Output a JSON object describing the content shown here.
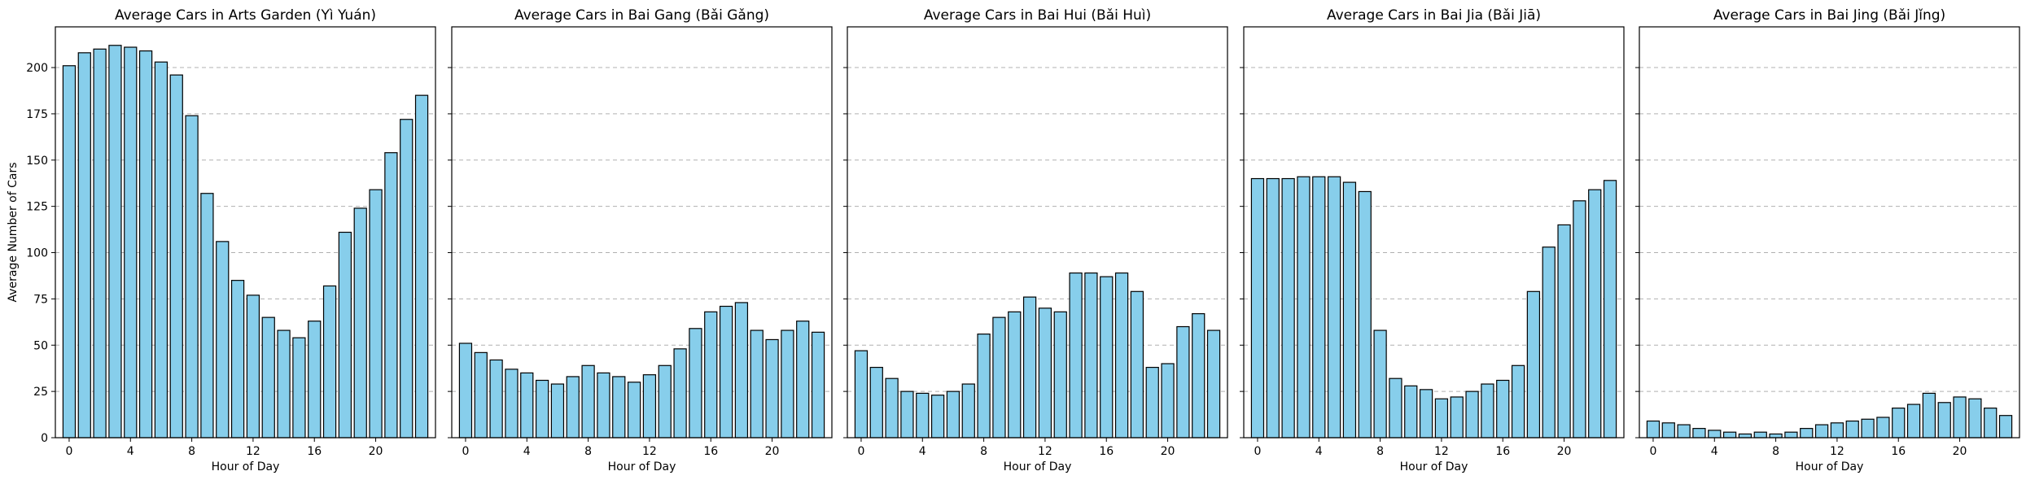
{
  "chart_data": [
    {
      "type": "bar",
      "title": "Average Cars in Arts Garden (Yì Yuán)",
      "xlabel": "Hour of Day",
      "ylabel": "Average Number of Cars",
      "categories": [
        0,
        1,
        2,
        3,
        4,
        5,
        6,
        7,
        8,
        9,
        10,
        11,
        12,
        13,
        14,
        15,
        16,
        17,
        18,
        19,
        20,
        21,
        22,
        23
      ],
      "values": [
        201,
        208,
        210,
        212,
        211,
        209,
        203,
        196,
        174,
        132,
        106,
        85,
        77,
        65,
        58,
        54,
        63,
        82,
        111,
        124,
        134,
        154,
        172,
        185
      ],
      "xticks": [
        0,
        4,
        8,
        12,
        16,
        20
      ],
      "ylim": [
        0,
        222
      ],
      "yticks": [
        0,
        25,
        50,
        75,
        100,
        125,
        150,
        175,
        200
      ],
      "grid": "y"
    },
    {
      "type": "bar",
      "title": "Average Cars in Bai Gang (Bǎi Gǎng)",
      "xlabel": "Hour of Day",
      "ylabel": "",
      "categories": [
        0,
        1,
        2,
        3,
        4,
        5,
        6,
        7,
        8,
        9,
        10,
        11,
        12,
        13,
        14,
        15,
        16,
        17,
        18,
        19,
        20,
        21,
        22,
        23
      ],
      "values": [
        51,
        46,
        42,
        37,
        35,
        31,
        29,
        33,
        39,
        35,
        33,
        30,
        34,
        39,
        48,
        59,
        68,
        71,
        73,
        58,
        53,
        58,
        63,
        57
      ],
      "xticks": [
        0,
        4,
        8,
        12,
        16,
        20
      ],
      "ylim": [
        0,
        222
      ],
      "yticks": [
        0,
        25,
        50,
        75,
        100,
        125,
        150,
        175,
        200
      ],
      "grid": "y"
    },
    {
      "type": "bar",
      "title": "Average Cars in Bai Hui (Bǎi Huì)",
      "xlabel": "Hour of Day",
      "ylabel": "",
      "categories": [
        0,
        1,
        2,
        3,
        4,
        5,
        6,
        7,
        8,
        9,
        10,
        11,
        12,
        13,
        14,
        15,
        16,
        17,
        18,
        19,
        20,
        21,
        22,
        23
      ],
      "values": [
        47,
        38,
        32,
        25,
        24,
        23,
        25,
        29,
        56,
        65,
        68,
        76,
        70,
        68,
        89,
        89,
        87,
        89,
        79,
        38,
        40,
        60,
        67,
        58
      ],
      "xticks": [
        0,
        4,
        8,
        12,
        16,
        20
      ],
      "ylim": [
        0,
        222
      ],
      "yticks": [
        0,
        25,
        50,
        75,
        100,
        125,
        150,
        175,
        200
      ],
      "grid": "y"
    },
    {
      "type": "bar",
      "title": "Average Cars in Bai Jia (Bǎi Jiā)",
      "xlabel": "Hour of Day",
      "ylabel": "",
      "categories": [
        0,
        1,
        2,
        3,
        4,
        5,
        6,
        7,
        8,
        9,
        10,
        11,
        12,
        13,
        14,
        15,
        16,
        17,
        18,
        19,
        20,
        21,
        22,
        23
      ],
      "values": [
        140,
        140,
        140,
        141,
        141,
        141,
        138,
        133,
        58,
        32,
        28,
        26,
        21,
        22,
        25,
        29,
        31,
        39,
        79,
        103,
        115,
        128,
        134,
        139
      ],
      "xticks": [
        0,
        4,
        8,
        12,
        16,
        20
      ],
      "ylim": [
        0,
        222
      ],
      "yticks": [
        0,
        25,
        50,
        75,
        100,
        125,
        150,
        175,
        200
      ],
      "grid": "y"
    },
    {
      "type": "bar",
      "title": "Average Cars in Bai Jing (Bǎi Jǐng)",
      "xlabel": "Hour of Day",
      "ylabel": "",
      "categories": [
        0,
        1,
        2,
        3,
        4,
        5,
        6,
        7,
        8,
        9,
        10,
        11,
        12,
        13,
        14,
        15,
        16,
        17,
        18,
        19,
        20,
        21,
        22,
        23
      ],
      "values": [
        9,
        8,
        7,
        5,
        4,
        3,
        2,
        3,
        2,
        3,
        5,
        7,
        8,
        9,
        10,
        11,
        16,
        18,
        24,
        19,
        22,
        21,
        16,
        12
      ],
      "xticks": [
        0,
        4,
        8,
        12,
        16,
        20
      ],
      "ylim": [
        0,
        222
      ],
      "yticks": [
        0,
        25,
        50,
        75,
        100,
        125,
        150,
        175,
        200
      ],
      "grid": "y"
    }
  ]
}
